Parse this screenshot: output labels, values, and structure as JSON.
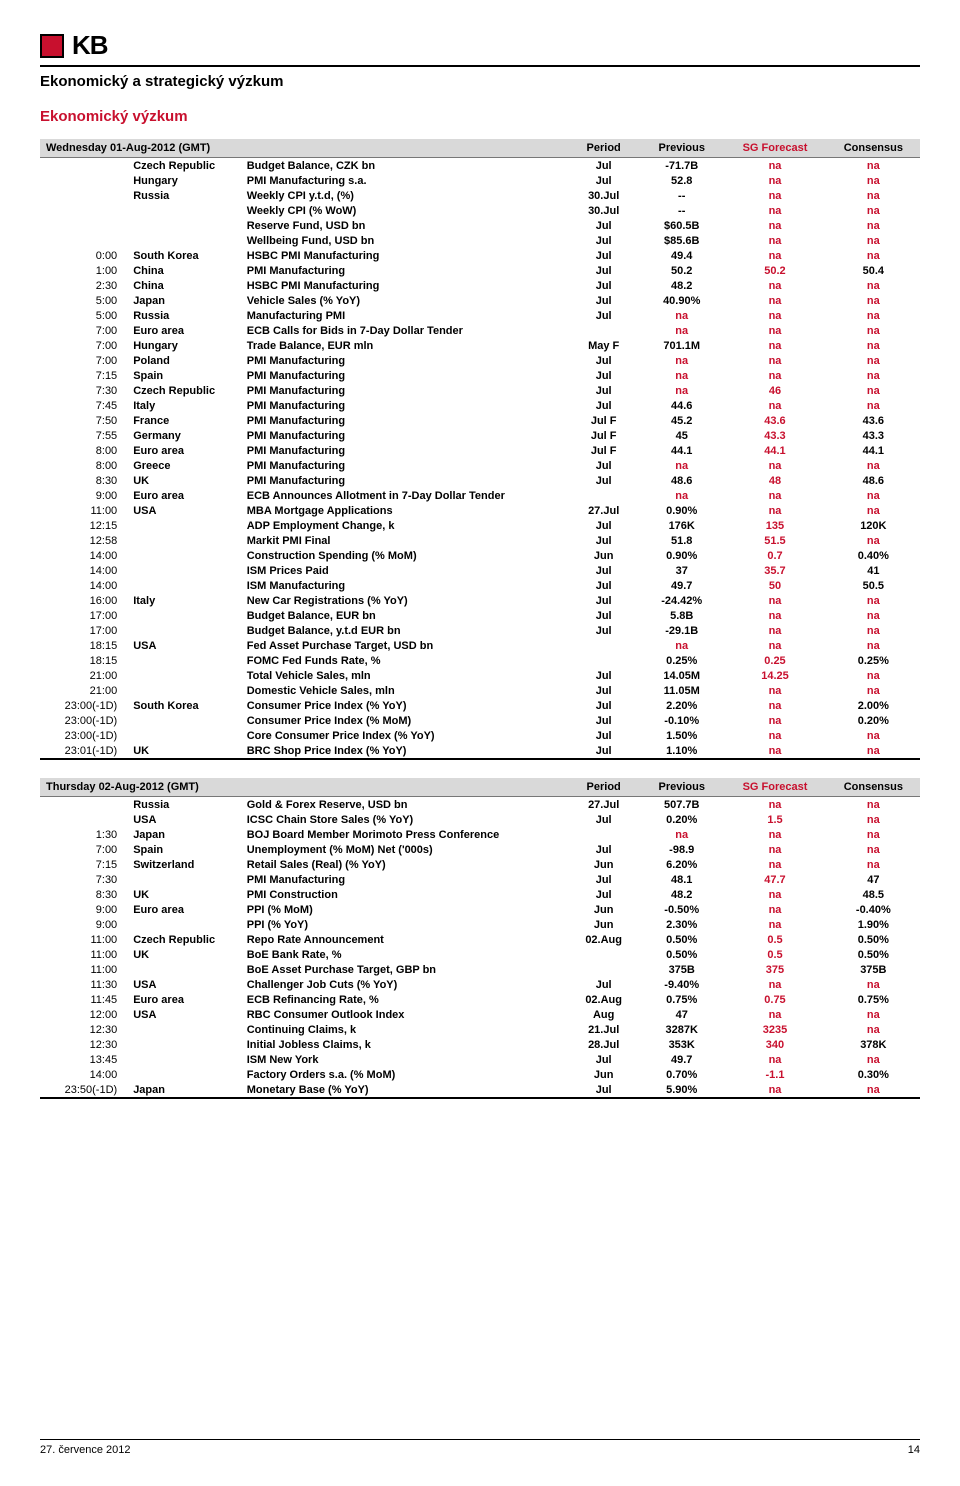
{
  "header": {
    "logo_text": "KB",
    "subtitle": "Ekonomický a strategický výzkum",
    "section_title": "Ekonomický výzkum"
  },
  "colors": {
    "accent": "#c8102e",
    "header_bg": "#d9d9d9",
    "text": "#000000",
    "bg": "#ffffff"
  },
  "table_headers": {
    "period": "Period",
    "previous": "Previous",
    "sg": "SG Forecast",
    "consensus": "Consensus"
  },
  "days": [
    {
      "title": "Wednesday 01-Aug-2012 (GMT)",
      "rows": [
        {
          "time": "",
          "country": "Czech Republic",
          "event": "Budget Balance, CZK bn",
          "period": "Jul",
          "prev": "-71.7B",
          "sg": "na",
          "cons": "na"
        },
        {
          "time": "",
          "country": "Hungary",
          "event": "PMI Manufacturing s.a.",
          "period": "Jul",
          "prev": "52.8",
          "sg": "na",
          "cons": "na"
        },
        {
          "time": "",
          "country": "Russia",
          "event": "Weekly CPI y.t.d, (%)",
          "period": "30.Jul",
          "prev": "--",
          "sg": "na",
          "cons": "na"
        },
        {
          "time": "",
          "country": "",
          "event": "Weekly CPI (% WoW)",
          "period": "30.Jul",
          "prev": "--",
          "sg": "na",
          "cons": "na"
        },
        {
          "time": "",
          "country": "",
          "event": "Reserve Fund, USD bn",
          "period": "Jul",
          "prev": "$60.5B",
          "sg": "na",
          "cons": "na"
        },
        {
          "time": "",
          "country": "",
          "event": "Wellbeing Fund, USD bn",
          "period": "Jul",
          "prev": "$85.6B",
          "sg": "na",
          "cons": "na"
        },
        {
          "time": "0:00",
          "country": "South Korea",
          "event": "HSBC PMI Manufacturing",
          "period": "Jul",
          "prev": "49.4",
          "sg": "na",
          "cons": "na"
        },
        {
          "time": "1:00",
          "country": "China",
          "event": "PMI Manufacturing",
          "period": "Jul",
          "prev": "50.2",
          "sg": "50.2",
          "cons": "50.4"
        },
        {
          "time": "2:30",
          "country": "China",
          "event": "HSBC PMI Manufacturing",
          "period": "Jul",
          "prev": "48.2",
          "sg": "na",
          "cons": "na"
        },
        {
          "time": "5:00",
          "country": "Japan",
          "event": "Vehicle Sales (% YoY)",
          "period": "Jul",
          "prev": "40.90%",
          "sg": "na",
          "cons": "na"
        },
        {
          "time": "5:00",
          "country": "Russia",
          "event": "Manufacturing PMI",
          "period": "Jul",
          "prev": "na",
          "sg": "na",
          "cons": "na"
        },
        {
          "time": "7:00",
          "country": "Euro area",
          "event": "ECB Calls for Bids in 7-Day Dollar Tender",
          "period": "",
          "prev": "na",
          "sg": "na",
          "cons": "na"
        },
        {
          "time": "7:00",
          "country": "Hungary",
          "event": "Trade Balance, EUR mln",
          "period": "May F",
          "prev": "701.1M",
          "sg": "na",
          "cons": "na"
        },
        {
          "time": "7:00",
          "country": "Poland",
          "event": "PMI Manufacturing",
          "period": "Jul",
          "prev": "na",
          "sg": "na",
          "cons": "na"
        },
        {
          "time": "7:15",
          "country": "Spain",
          "event": "PMI Manufacturing",
          "period": "Jul",
          "prev": "na",
          "sg": "na",
          "cons": "na"
        },
        {
          "time": "7:30",
          "country": "Czech Republic",
          "event": "PMI Manufacturing",
          "period": "Jul",
          "prev": "na",
          "sg": "46",
          "cons": "na"
        },
        {
          "time": "7:45",
          "country": "Italy",
          "event": "PMI Manufacturing",
          "period": "Jul",
          "prev": "44.6",
          "sg": "na",
          "cons": "na"
        },
        {
          "time": "7:50",
          "country": "France",
          "event": "PMI Manufacturing",
          "period": "Jul F",
          "prev": "45.2",
          "sg": "43.6",
          "cons": "43.6"
        },
        {
          "time": "7:55",
          "country": "Germany",
          "event": "PMI Manufacturing",
          "period": "Jul F",
          "prev": "45",
          "sg": "43.3",
          "cons": "43.3"
        },
        {
          "time": "8:00",
          "country": "Euro area",
          "event": "PMI Manufacturing",
          "period": "Jul F",
          "prev": "44.1",
          "sg": "44.1",
          "cons": "44.1"
        },
        {
          "time": "8:00",
          "country": "Greece",
          "event": "PMI Manufacturing",
          "period": "Jul",
          "prev": "na",
          "sg": "na",
          "cons": "na"
        },
        {
          "time": "8:30",
          "country": "UK",
          "event": "PMI Manufacturing",
          "period": "Jul",
          "prev": "48.6",
          "sg": "48",
          "cons": "48.6"
        },
        {
          "time": "9:00",
          "country": "Euro area",
          "event": "ECB Announces Allotment in 7-Day Dollar Tender",
          "period": "",
          "prev": "na",
          "sg": "na",
          "cons": "na"
        },
        {
          "time": "11:00",
          "country": "USA",
          "event": "MBA Mortgage Applications",
          "period": "27.Jul",
          "prev": "0.90%",
          "sg": "na",
          "cons": "na"
        },
        {
          "time": "12:15",
          "country": "",
          "event": "ADP Employment Change, k",
          "period": "Jul",
          "prev": "176K",
          "sg": "135",
          "cons": "120K"
        },
        {
          "time": "12:58",
          "country": "",
          "event": "Markit PMI Final",
          "period": "Jul",
          "prev": "51.8",
          "sg": "51.5",
          "cons": "na"
        },
        {
          "time": "14:00",
          "country": "",
          "event": "Construction Spending (% MoM)",
          "period": "Jun",
          "prev": "0.90%",
          "sg": "0.7",
          "cons": "0.40%"
        },
        {
          "time": "14:00",
          "country": "",
          "event": "ISM Prices Paid",
          "period": "Jul",
          "prev": "37",
          "sg": "35.7",
          "cons": "41"
        },
        {
          "time": "14:00",
          "country": "",
          "event": "ISM Manufacturing",
          "period": "Jul",
          "prev": "49.7",
          "sg": "50",
          "cons": "50.5"
        },
        {
          "time": "16:00",
          "country": "Italy",
          "event": "New Car Registrations (% YoY)",
          "period": "Jul",
          "prev": "-24.42%",
          "sg": "na",
          "cons": "na"
        },
        {
          "time": "17:00",
          "country": "",
          "event": "Budget Balance, EUR bn",
          "period": "Jul",
          "prev": "5.8B",
          "sg": "na",
          "cons": "na"
        },
        {
          "time": "17:00",
          "country": "",
          "event": "Budget Balance, y.t.d EUR bn",
          "period": "Jul",
          "prev": "-29.1B",
          "sg": "na",
          "cons": "na"
        },
        {
          "time": "18:15",
          "country": "USA",
          "event": "Fed Asset Purchase Target, USD bn",
          "period": "",
          "prev": "na",
          "sg": "na",
          "cons": "na"
        },
        {
          "time": "18:15",
          "country": "",
          "event": "FOMC Fed Funds Rate, %",
          "period": "",
          "prev": "0.25%",
          "sg": "0.25",
          "cons": "0.25%"
        },
        {
          "time": "21:00",
          "country": "",
          "event": "Total Vehicle Sales, mln",
          "period": "Jul",
          "prev": "14.05M",
          "sg": "14.25",
          "cons": "na"
        },
        {
          "time": "21:00",
          "country": "",
          "event": "Domestic Vehicle Sales, mln",
          "period": "Jul",
          "prev": "11.05M",
          "sg": "na",
          "cons": "na"
        },
        {
          "time": "23:00(-1D)",
          "country": "South Korea",
          "event": "Consumer Price Index (% YoY)",
          "period": "Jul",
          "prev": "2.20%",
          "sg": "na",
          "cons": "2.00%"
        },
        {
          "time": "23:00(-1D)",
          "country": "",
          "event": "Consumer Price Index (% MoM)",
          "period": "Jul",
          "prev": "-0.10%",
          "sg": "na",
          "cons": "0.20%"
        },
        {
          "time": "23:00(-1D)",
          "country": "",
          "event": "Core Consumer Price Index (% YoY)",
          "period": "Jul",
          "prev": "1.50%",
          "sg": "na",
          "cons": "na"
        },
        {
          "time": "23:01(-1D)",
          "country": "UK",
          "event": "BRC Shop Price Index (% YoY)",
          "period": "Jul",
          "prev": "1.10%",
          "sg": "na",
          "cons": "na"
        }
      ]
    },
    {
      "title": "Thursday 02-Aug-2012 (GMT)",
      "rows": [
        {
          "time": "",
          "country": "Russia",
          "event": "Gold & Forex Reserve, USD bn",
          "period": "27.Jul",
          "prev": "507.7B",
          "sg": "na",
          "cons": "na"
        },
        {
          "time": "",
          "country": "USA",
          "event": "ICSC Chain Store Sales (% YoY)",
          "period": "Jul",
          "prev": "0.20%",
          "sg": "1.5",
          "cons": "na"
        },
        {
          "time": "1:30",
          "country": "Japan",
          "event": "BOJ Board Member Morimoto Press Conference",
          "period": "",
          "prev": "na",
          "sg": "na",
          "cons": "na"
        },
        {
          "time": "7:00",
          "country": "Spain",
          "event": "Unemployment (% MoM) Net ('000s)",
          "period": "Jul",
          "prev": "-98.9",
          "sg": "na",
          "cons": "na"
        },
        {
          "time": "7:15",
          "country": "Switzerland",
          "event": "Retail Sales (Real) (% YoY)",
          "period": "Jun",
          "prev": "6.20%",
          "sg": "na",
          "cons": "na"
        },
        {
          "time": "7:30",
          "country": "",
          "event": "PMI Manufacturing",
          "period": "Jul",
          "prev": "48.1",
          "sg": "47.7",
          "cons": "47"
        },
        {
          "time": "8:30",
          "country": "UK",
          "event": "PMI Construction",
          "period": "Jul",
          "prev": "48.2",
          "sg": "na",
          "cons": "48.5"
        },
        {
          "time": "9:00",
          "country": "Euro area",
          "event": "PPI (% MoM)",
          "period": "Jun",
          "prev": "-0.50%",
          "sg": "na",
          "cons": "-0.40%"
        },
        {
          "time": "9:00",
          "country": "",
          "event": "PPI (% YoY)",
          "period": "Jun",
          "prev": "2.30%",
          "sg": "na",
          "cons": "1.90%"
        },
        {
          "time": "11:00",
          "country": "Czech Republic",
          "event": "Repo Rate Announcement",
          "period": "02.Aug",
          "prev": "0.50%",
          "sg": "0.5",
          "cons": "0.50%"
        },
        {
          "time": "11:00",
          "country": "UK",
          "event": "BoE Bank Rate, %",
          "period": "",
          "prev": "0.50%",
          "sg": "0.5",
          "cons": "0.50%"
        },
        {
          "time": "11:00",
          "country": "",
          "event": "BoE Asset Purchase Target, GBP bn",
          "period": "",
          "prev": "375B",
          "sg": "375",
          "cons": "375B"
        },
        {
          "time": "11:30",
          "country": "USA",
          "event": "Challenger Job Cuts (% YoY)",
          "period": "Jul",
          "prev": "-9.40%",
          "sg": "na",
          "cons": "na"
        },
        {
          "time": "11:45",
          "country": "Euro area",
          "event": "ECB Refinancing Rate, %",
          "period": "02.Aug",
          "prev": "0.75%",
          "sg": "0.75",
          "cons": "0.75%"
        },
        {
          "time": "12:00",
          "country": "USA",
          "event": "RBC Consumer Outlook Index",
          "period": "Aug",
          "prev": "47",
          "sg": "na",
          "cons": "na"
        },
        {
          "time": "12:30",
          "country": "",
          "event": "Continuing Claims, k",
          "period": "21.Jul",
          "prev": "3287K",
          "sg": "3235",
          "cons": "na"
        },
        {
          "time": "12:30",
          "country": "",
          "event": "Initial Jobless Claims, k",
          "period": "28.Jul",
          "prev": "353K",
          "sg": "340",
          "cons": "378K"
        },
        {
          "time": "13:45",
          "country": "",
          "event": "ISM New York",
          "period": "Jul",
          "prev": "49.7",
          "sg": "na",
          "cons": "na"
        },
        {
          "time": "14:00",
          "country": "",
          "event": "Factory Orders s.a. (% MoM)",
          "period": "Jun",
          "prev": "0.70%",
          "sg": "-1.1",
          "cons": "0.30%"
        },
        {
          "time": "23:50(-1D)",
          "country": "Japan",
          "event": "Monetary Base (% YoY)",
          "period": "Jul",
          "prev": "5.90%",
          "sg": "na",
          "cons": "na"
        }
      ]
    }
  ],
  "footer": {
    "date": "27. července 2012",
    "page": "14"
  }
}
